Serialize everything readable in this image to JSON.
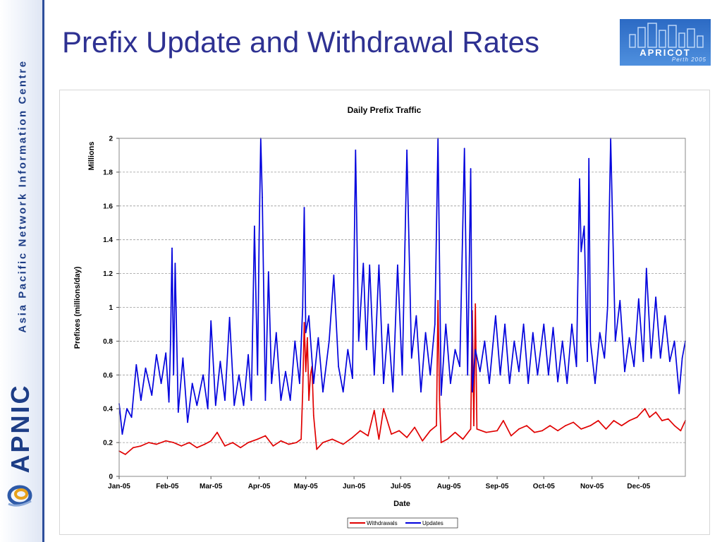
{
  "sidebar": {
    "org_text": "Asia Pacific Network Information Centre",
    "logo_text": "APNIC"
  },
  "slide": {
    "title": "Prefix Update and Withdrawal Rates"
  },
  "badge": {
    "name": "APRICOT",
    "sub": "Perth 2005"
  },
  "colors": {
    "updates": "#0000dd",
    "withdrawals": "#e00000",
    "title": "#2e3192"
  },
  "chart_data": {
    "type": "line",
    "title": "Daily Prefix Traffic",
    "xlabel": "Date",
    "ylabel": "Prefixes (millions/day)",
    "yunit": "Millions",
    "ylim": [
      0,
      2
    ],
    "y_ticks": [
      "0",
      "0.2",
      "0.4",
      "0.6",
      "0.8",
      "1",
      "1.2",
      "1.4",
      "1.6",
      "1.8",
      "2"
    ],
    "x_ticks": [
      "Jan-05",
      "Feb-05",
      "Mar-05",
      "Apr-05",
      "May-05",
      "Jun-05",
      "Jul-05",
      "Aug-05",
      "Sep-05",
      "Oct-05",
      "Nov-05",
      "Dec-05"
    ],
    "x_range": [
      "2005-01-01",
      "2005-12-31"
    ],
    "grid": true,
    "legend": "bottom-center",
    "series": [
      {
        "name": "Withdrawals",
        "points": [
          [
            "2005-01-01",
            0.15
          ],
          [
            "2005-01-05",
            0.13
          ],
          [
            "2005-01-10",
            0.17
          ],
          [
            "2005-01-15",
            0.18
          ],
          [
            "2005-01-20",
            0.2
          ],
          [
            "2005-01-25",
            0.19
          ],
          [
            "2005-01-31",
            0.21
          ],
          [
            "2005-02-05",
            0.2
          ],
          [
            "2005-02-10",
            0.18
          ],
          [
            "2005-02-15",
            0.2
          ],
          [
            "2005-02-20",
            0.17
          ],
          [
            "2005-02-25",
            0.19
          ],
          [
            "2005-03-01",
            0.21
          ],
          [
            "2005-03-05",
            0.26
          ],
          [
            "2005-03-10",
            0.18
          ],
          [
            "2005-03-15",
            0.2
          ],
          [
            "2005-03-20",
            0.17
          ],
          [
            "2005-03-25",
            0.2
          ],
          [
            "2005-03-31",
            0.22
          ],
          [
            "2005-04-05",
            0.24
          ],
          [
            "2005-04-10",
            0.18
          ],
          [
            "2005-04-15",
            0.21
          ],
          [
            "2005-04-20",
            0.19
          ],
          [
            "2005-04-25",
            0.2
          ],
          [
            "2005-04-28",
            0.22
          ],
          [
            "2005-04-29",
            0.5
          ],
          [
            "2005-04-30",
            0.91
          ],
          [
            "2005-05-01",
            0.62
          ],
          [
            "2005-05-02",
            0.82
          ],
          [
            "2005-05-03",
            0.45
          ],
          [
            "2005-05-04",
            0.6
          ],
          [
            "2005-05-05",
            0.65
          ],
          [
            "2005-05-06",
            0.36
          ],
          [
            "2005-05-08",
            0.16
          ],
          [
            "2005-05-12",
            0.2
          ],
          [
            "2005-05-18",
            0.22
          ],
          [
            "2005-05-25",
            0.19
          ],
          [
            "2005-05-31",
            0.23
          ],
          [
            "2005-06-05",
            0.27
          ],
          [
            "2005-06-10",
            0.24
          ],
          [
            "2005-06-14",
            0.39
          ],
          [
            "2005-06-17",
            0.22
          ],
          [
            "2005-06-20",
            0.4
          ],
          [
            "2005-06-25",
            0.25
          ],
          [
            "2005-06-30",
            0.27
          ],
          [
            "2005-07-05",
            0.23
          ],
          [
            "2005-07-10",
            0.29
          ],
          [
            "2005-07-15",
            0.21
          ],
          [
            "2005-07-20",
            0.27
          ],
          [
            "2005-07-24",
            0.3
          ],
          [
            "2005-07-25",
            1.04
          ],
          [
            "2005-07-26",
            0.45
          ],
          [
            "2005-07-27",
            0.2
          ],
          [
            "2005-07-31",
            0.22
          ],
          [
            "2005-08-05",
            0.26
          ],
          [
            "2005-08-10",
            0.22
          ],
          [
            "2005-08-15",
            0.28
          ],
          [
            "2005-08-16",
            0.98
          ],
          [
            "2005-08-17",
            0.3
          ],
          [
            "2005-08-18",
            1.02
          ],
          [
            "2005-08-19",
            0.28
          ],
          [
            "2005-08-25",
            0.26
          ],
          [
            "2005-09-01",
            0.27
          ],
          [
            "2005-09-05",
            0.33
          ],
          [
            "2005-09-10",
            0.24
          ],
          [
            "2005-09-15",
            0.28
          ],
          [
            "2005-09-20",
            0.3
          ],
          [
            "2005-09-25",
            0.26
          ],
          [
            "2005-09-30",
            0.27
          ],
          [
            "2005-10-05",
            0.3
          ],
          [
            "2005-10-10",
            0.27
          ],
          [
            "2005-10-15",
            0.3
          ],
          [
            "2005-10-20",
            0.32
          ],
          [
            "2005-10-25",
            0.28
          ],
          [
            "2005-10-31",
            0.3
          ],
          [
            "2005-11-05",
            0.33
          ],
          [
            "2005-11-10",
            0.28
          ],
          [
            "2005-11-15",
            0.33
          ],
          [
            "2005-11-20",
            0.3
          ],
          [
            "2005-11-25",
            0.33
          ],
          [
            "2005-11-30",
            0.35
          ],
          [
            "2005-12-05",
            0.4
          ],
          [
            "2005-12-08",
            0.35
          ],
          [
            "2005-12-12",
            0.38
          ],
          [
            "2005-12-16",
            0.33
          ],
          [
            "2005-12-20",
            0.34
          ],
          [
            "2005-12-24",
            0.3
          ],
          [
            "2005-12-28",
            0.27
          ],
          [
            "2005-12-31",
            0.33
          ]
        ]
      },
      {
        "name": "Updates",
        "points": [
          [
            "2005-01-01",
            0.43
          ],
          [
            "2005-01-03",
            0.25
          ],
          [
            "2005-01-06",
            0.4
          ],
          [
            "2005-01-09",
            0.35
          ],
          [
            "2005-01-12",
            0.66
          ],
          [
            "2005-01-15",
            0.45
          ],
          [
            "2005-01-18",
            0.64
          ],
          [
            "2005-01-22",
            0.48
          ],
          [
            "2005-01-25",
            0.72
          ],
          [
            "2005-01-28",
            0.55
          ],
          [
            "2005-01-31",
            0.73
          ],
          [
            "2005-02-02",
            0.44
          ],
          [
            "2005-02-03",
            0.78
          ],
          [
            "2005-02-04",
            1.35
          ],
          [
            "2005-02-05",
            0.6
          ],
          [
            "2005-02-06",
            1.26
          ],
          [
            "2005-02-08",
            0.38
          ],
          [
            "2005-02-11",
            0.7
          ],
          [
            "2005-02-14",
            0.32
          ],
          [
            "2005-02-17",
            0.55
          ],
          [
            "2005-02-20",
            0.42
          ],
          [
            "2005-02-24",
            0.6
          ],
          [
            "2005-02-27",
            0.4
          ],
          [
            "2005-03-01",
            0.92
          ],
          [
            "2005-03-04",
            0.42
          ],
          [
            "2005-03-07",
            0.68
          ],
          [
            "2005-03-10",
            0.45
          ],
          [
            "2005-03-13",
            0.94
          ],
          [
            "2005-03-16",
            0.42
          ],
          [
            "2005-03-19",
            0.6
          ],
          [
            "2005-03-22",
            0.42
          ],
          [
            "2005-03-25",
            0.72
          ],
          [
            "2005-03-27",
            0.45
          ],
          [
            "2005-03-29",
            1.48
          ],
          [
            "2005-03-31",
            0.6
          ],
          [
            "2005-04-01",
            1.4
          ],
          [
            "2005-04-02",
            2.0
          ],
          [
            "2005-04-03",
            1.65
          ],
          [
            "2005-04-05",
            0.45
          ],
          [
            "2005-04-07",
            1.21
          ],
          [
            "2005-04-09",
            0.55
          ],
          [
            "2005-04-12",
            0.85
          ],
          [
            "2005-04-15",
            0.45
          ],
          [
            "2005-04-18",
            0.62
          ],
          [
            "2005-04-21",
            0.45
          ],
          [
            "2005-04-24",
            0.8
          ],
          [
            "2005-04-27",
            0.55
          ],
          [
            "2005-04-29",
            1.0
          ],
          [
            "2005-04-30",
            1.59
          ],
          [
            "2005-05-01",
            0.85
          ],
          [
            "2005-05-03",
            0.95
          ],
          [
            "2005-05-06",
            0.55
          ],
          [
            "2005-05-09",
            0.82
          ],
          [
            "2005-05-12",
            0.5
          ],
          [
            "2005-05-16",
            0.8
          ],
          [
            "2005-05-19",
            1.19
          ],
          [
            "2005-05-22",
            0.65
          ],
          [
            "2005-05-25",
            0.5
          ],
          [
            "2005-05-28",
            0.75
          ],
          [
            "2005-05-31",
            0.58
          ],
          [
            "2005-06-02",
            1.93
          ],
          [
            "2005-06-04",
            0.8
          ],
          [
            "2005-06-07",
            1.26
          ],
          [
            "2005-06-09",
            0.75
          ],
          [
            "2005-06-11",
            1.25
          ],
          [
            "2005-06-14",
            0.6
          ],
          [
            "2005-06-17",
            1.25
          ],
          [
            "2005-06-20",
            0.55
          ],
          [
            "2005-06-23",
            0.9
          ],
          [
            "2005-06-26",
            0.5
          ],
          [
            "2005-06-29",
            1.25
          ],
          [
            "2005-07-02",
            0.6
          ],
          [
            "2005-07-05",
            1.93
          ],
          [
            "2005-07-08",
            0.7
          ],
          [
            "2005-07-11",
            0.95
          ],
          [
            "2005-07-14",
            0.5
          ],
          [
            "2005-07-17",
            0.85
          ],
          [
            "2005-07-20",
            0.6
          ],
          [
            "2005-07-23",
            0.9
          ],
          [
            "2005-07-25",
            2.0
          ],
          [
            "2005-07-27",
            0.48
          ],
          [
            "2005-07-30",
            0.9
          ],
          [
            "2005-08-02",
            0.55
          ],
          [
            "2005-08-05",
            0.75
          ],
          [
            "2005-08-08",
            0.65
          ],
          [
            "2005-08-11",
            1.94
          ],
          [
            "2005-08-13",
            0.6
          ],
          [
            "2005-08-15",
            1.82
          ],
          [
            "2005-08-16",
            0.5
          ],
          [
            "2005-08-18",
            0.75
          ],
          [
            "2005-08-21",
            0.62
          ],
          [
            "2005-08-24",
            0.8
          ],
          [
            "2005-08-27",
            0.55
          ],
          [
            "2005-08-31",
            0.95
          ],
          [
            "2005-09-03",
            0.6
          ],
          [
            "2005-09-06",
            0.9
          ],
          [
            "2005-09-09",
            0.55
          ],
          [
            "2005-09-12",
            0.8
          ],
          [
            "2005-09-15",
            0.62
          ],
          [
            "2005-09-18",
            0.9
          ],
          [
            "2005-09-21",
            0.55
          ],
          [
            "2005-09-24",
            0.85
          ],
          [
            "2005-09-27",
            0.6
          ],
          [
            "2005-10-01",
            0.9
          ],
          [
            "2005-10-04",
            0.6
          ],
          [
            "2005-10-07",
            0.88
          ],
          [
            "2005-10-10",
            0.56
          ],
          [
            "2005-10-13",
            0.8
          ],
          [
            "2005-10-16",
            0.55
          ],
          [
            "2005-10-19",
            0.9
          ],
          [
            "2005-10-22",
            0.65
          ],
          [
            "2005-10-24",
            1.76
          ],
          [
            "2005-10-25",
            1.33
          ],
          [
            "2005-10-27",
            1.48
          ],
          [
            "2005-10-29",
            0.68
          ],
          [
            "2005-10-30",
            1.88
          ],
          [
            "2005-10-31",
            0.8
          ],
          [
            "2005-11-03",
            0.55
          ],
          [
            "2005-11-06",
            0.85
          ],
          [
            "2005-11-09",
            0.7
          ],
          [
            "2005-11-11",
            1.0
          ],
          [
            "2005-11-13",
            2.0
          ],
          [
            "2005-11-14",
            1.6
          ],
          [
            "2005-11-16",
            0.8
          ],
          [
            "2005-11-19",
            1.04
          ],
          [
            "2005-11-22",
            0.62
          ],
          [
            "2005-11-25",
            0.82
          ],
          [
            "2005-11-28",
            0.65
          ],
          [
            "2005-12-01",
            1.05
          ],
          [
            "2005-12-04",
            0.68
          ],
          [
            "2005-12-06",
            1.23
          ],
          [
            "2005-12-09",
            0.7
          ],
          [
            "2005-12-12",
            1.06
          ],
          [
            "2005-12-15",
            0.7
          ],
          [
            "2005-12-18",
            0.95
          ],
          [
            "2005-12-21",
            0.68
          ],
          [
            "2005-12-24",
            0.8
          ],
          [
            "2005-12-27",
            0.49
          ],
          [
            "2005-12-29",
            0.7
          ],
          [
            "2005-12-31",
            0.8
          ]
        ]
      }
    ]
  }
}
